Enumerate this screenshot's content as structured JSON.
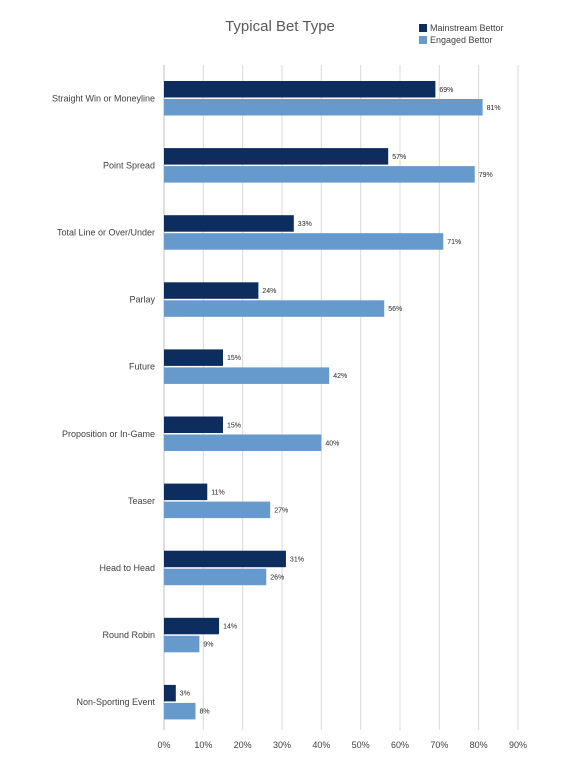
{
  "colors": {
    "mainstream": "#0c2d5e",
    "engaged": "#6699cc"
  },
  "chart_data": {
    "type": "bar",
    "orientation": "horizontal",
    "title": "Typical Bet Type",
    "xlabel": "",
    "ylabel": "",
    "xlim": [
      0,
      90
    ],
    "xticks": [
      "0%",
      "10%",
      "20%",
      "30%",
      "40%",
      "50%",
      "60%",
      "70%",
      "80%",
      "90%"
    ],
    "grid": true,
    "legend_position": "top-right",
    "categories": [
      "Straight Win or Moneyline",
      "Point Spread",
      "Total Line or Over/Under",
      "Parlay",
      "Future",
      "Proposition or In-Game",
      "Teaser",
      "Head to Head",
      "Round Robin",
      "Non-Sporting Event"
    ],
    "series": [
      {
        "name": "Mainstream Bettor",
        "values": [
          69,
          57,
          33,
          24,
          15,
          15,
          11,
          31,
          14,
          3
        ],
        "labels": [
          "69%",
          "57%",
          "33%",
          "24%",
          "15%",
          "15%",
          "11%",
          "31%",
          "14%",
          "3%"
        ]
      },
      {
        "name": "Engaged Bettor",
        "values": [
          81,
          79,
          71,
          56,
          42,
          40,
          27,
          26,
          9,
          8
        ],
        "labels": [
          "81%",
          "79%",
          "71%",
          "56%",
          "42%",
          "40%",
          "27%",
          "26%",
          "9%",
          "8%"
        ]
      }
    ]
  }
}
